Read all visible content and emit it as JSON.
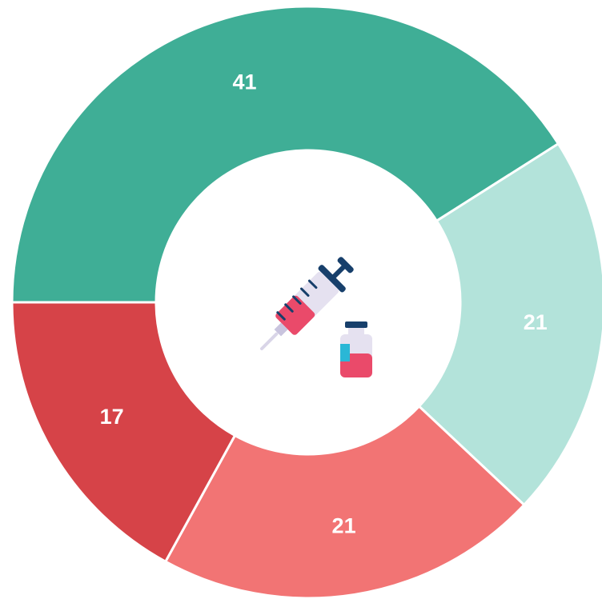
{
  "chart_data": {
    "type": "pie",
    "donut": true,
    "values": [
      41,
      21,
      21,
      17
    ],
    "colors": [
      "#3fae96",
      "#b3e3da",
      "#f27474",
      "#d64348"
    ]
  }
}
